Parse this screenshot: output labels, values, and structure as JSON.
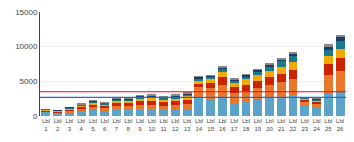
{
  "chart_data": {
    "type": "bar",
    "stacked": true,
    "categories": [
      "Lbl\n1",
      "Lbl\n2",
      "Lbl\n3",
      "Lbl\n4",
      "Lbl\n5",
      "Lbl\n6",
      "Lbl\n7",
      "Lbl\n8",
      "Lbl\n9",
      "Lbl\n10",
      "Lbl\n11",
      "Lbl\n12",
      "Lbl\n13",
      "Lbl\n14",
      "Lbl\n15",
      "Lbl\n16",
      "Lbl\n17",
      "Lbl\n18",
      "Lbl\n19",
      "Lbl\n20",
      "Lbl\n21",
      "Lbl\n22",
      "Lbl\n23",
      "Lbl\n24",
      "Lbl\n25",
      "Lbl\n26"
    ],
    "series": [
      {
        "color": "#5BA3C9",
        "values": [
          600,
          300,
          500,
          600,
          800,
          700,
          900,
          800,
          1000,
          900,
          800,
          900,
          1000,
          2800,
          2300,
          2600,
          1900,
          2100,
          2300,
          2600,
          2800,
          3000,
          1400,
          1300,
          3200,
          3600
        ]
      },
      {
        "color": "#E8762B",
        "values": [
          100,
          200,
          250,
          400,
          500,
          420,
          520,
          600,
          620,
          700,
          620,
          680,
          720,
          1400,
          1700,
          1900,
          1400,
          1500,
          1700,
          1900,
          2100,
          2300,
          640,
          540,
          2650,
          2850
        ]
      },
      {
        "color": "#CC2200",
        "values": [
          100,
          150,
          200,
          300,
          350,
          350,
          420,
          450,
          500,
          550,
          550,
          550,
          600,
          450,
          750,
          1100,
          840,
          940,
          1040,
          1100,
          1200,
          1400,
          270,
          270,
          1700,
          1900
        ]
      },
      {
        "color": "#F5A800",
        "values": [
          80,
          100,
          150,
          250,
          300,
          260,
          350,
          360,
          400,
          460,
          400,
          460,
          500,
          440,
          540,
          740,
          640,
          740,
          840,
          940,
          1040,
          1100,
          180,
          180,
          1100,
          1380
        ]
      },
      {
        "color": "#1A7A8A",
        "values": [
          50,
          80,
          80,
          120,
          180,
          160,
          200,
          220,
          260,
          260,
          240,
          260,
          300,
          360,
          360,
          460,
          360,
          460,
          540,
          640,
          740,
          840,
          130,
          130,
          940,
          1100
        ]
      },
      {
        "color": "#1A3A6A",
        "values": [
          0,
          30,
          40,
          40,
          80,
          80,
          80,
          80,
          120,
          120,
          100,
          120,
          120,
          180,
          180,
          220,
          180,
          180,
          220,
          270,
          310,
          360,
          80,
          80,
          460,
          540
        ]
      },
      {
        "color": "#888888",
        "values": [
          0,
          0,
          0,
          30,
          40,
          40,
          40,
          40,
          40,
          80,
          60,
          60,
          80,
          80,
          80,
          170,
          80,
          120,
          120,
          170,
          170,
          210,
          40,
          40,
          270,
          360
        ]
      }
    ],
    "reference_lines": [
      {
        "y": 3500,
        "color": "red"
      },
      {
        "y": 2700,
        "color": "#3366CC"
      }
    ],
    "ylim": [
      0,
      15000
    ],
    "yticks": [
      0,
      5000,
      10000,
      15000
    ],
    "grid": true
  }
}
